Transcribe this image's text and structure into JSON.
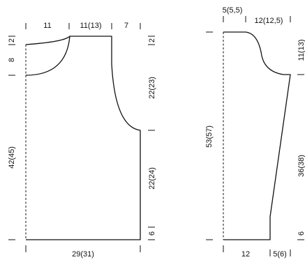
{
  "colors": {
    "line": "#111111",
    "background": "#ffffff"
  },
  "back_piece": {
    "top_labels": [
      "11",
      "11(13)",
      "7"
    ],
    "right_labels": [
      "2",
      "22(23)",
      "22(24)",
      "6"
    ],
    "left_labels": [
      "2",
      "8",
      "42(45)"
    ],
    "bottom_label": "29(31)"
  },
  "sleeve_piece": {
    "top_labels": [
      "5(5,5)",
      "12(12,5)"
    ],
    "left_label": "53(57)",
    "right_labels": [
      "11(13)",
      "36(38)",
      "6"
    ],
    "bottom_labels": [
      "12",
      "5(6)"
    ]
  }
}
